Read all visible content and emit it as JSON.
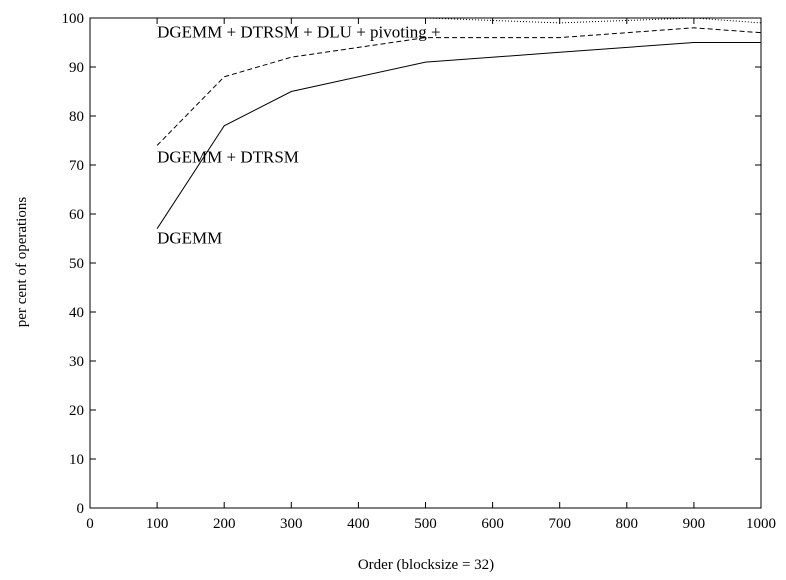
{
  "chart_data": {
    "type": "line",
    "title": "",
    "xlabel": "Order (blocksize = 32)",
    "ylabel": "per cent of operations",
    "xlim": [
      0,
      1000
    ],
    "ylim": [
      0,
      100
    ],
    "xticks": [
      0,
      100,
      200,
      300,
      400,
      500,
      600,
      700,
      800,
      900,
      1000
    ],
    "yticks": [
      0,
      10,
      20,
      30,
      40,
      50,
      60,
      70,
      80,
      90,
      100
    ],
    "grid": false,
    "legend": "none",
    "series": [
      {
        "name": "DGEMM",
        "style": "solid",
        "color": "#000000",
        "x": [
          100,
          200,
          300,
          500,
          700,
          900,
          1000
        ],
        "y": [
          57,
          78,
          85,
          91,
          93,
          95,
          95
        ]
      },
      {
        "name": "DGEMM + DTRSM",
        "style": "dashed",
        "color": "#000000",
        "x": [
          100,
          200,
          300,
          500,
          700,
          900,
          1000
        ],
        "y": [
          74,
          88,
          92,
          96,
          96,
          98,
          97
        ]
      },
      {
        "name": "DGEMM + DTRSM + DLU + pivoting +",
        "style": "dotted",
        "color": "#000000",
        "x": [
          100,
          200,
          300,
          500,
          700,
          900,
          1000
        ],
        "y": [
          100,
          100,
          100,
          100,
          99,
          100,
          99
        ]
      }
    ],
    "annotations": [
      {
        "text": "DGEMM",
        "x": 100,
        "y": 54
      },
      {
        "text": "DGEMM + DTRSM",
        "x": 100,
        "y": 70.5
      },
      {
        "text": "DGEMM + DTRSM + DLU + pivoting +",
        "x": 100,
        "y": 96
      }
    ]
  }
}
